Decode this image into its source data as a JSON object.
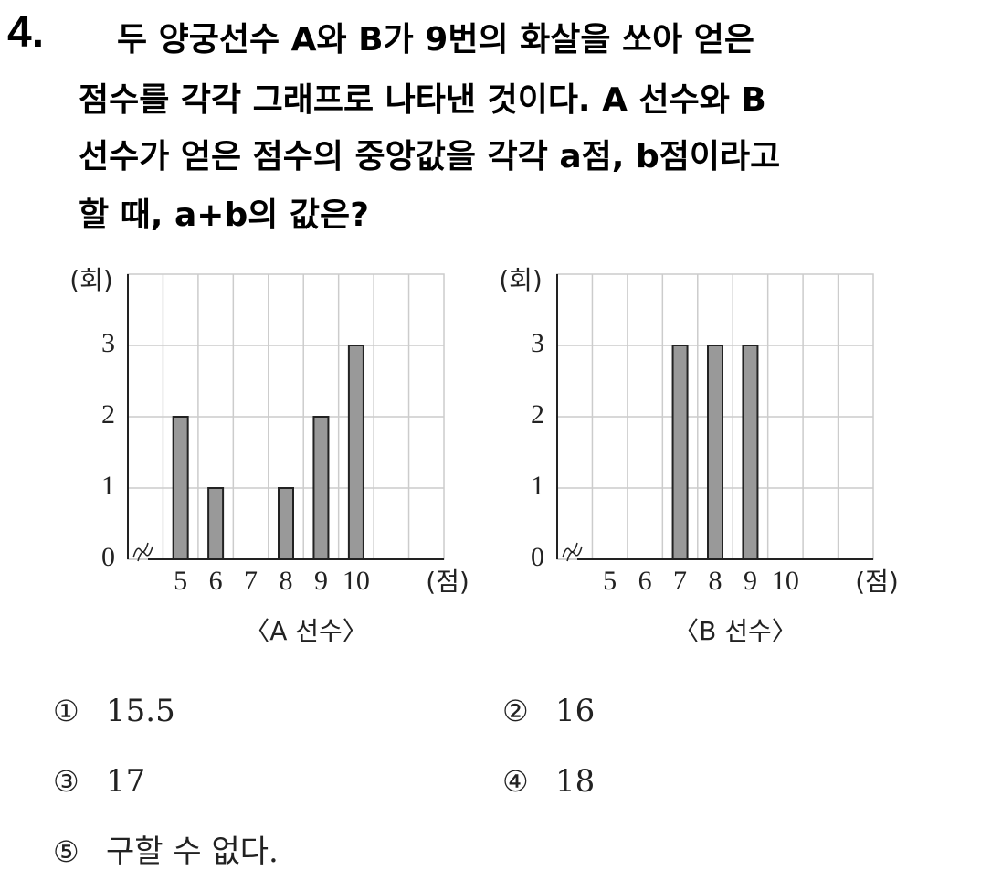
{
  "question_number": "4.",
  "question_lines": [
    "두 양궁선수 A와 B가 9번의 화살을 쏘아 얻은",
    "점수를 각각 그래프로 나타낸 것이다. A 선수와 B",
    "선수가 얻은 점수의 중앙값을 각각 a점, b점이라고",
    "할 때, a+b의 값은?"
  ],
  "chart_data": [
    {
      "type": "bar",
      "title": "〈A 선수〉",
      "x_label": "(점)",
      "y_label": "(회)",
      "categories": [
        null,
        5,
        6,
        7,
        8,
        9,
        10,
        null,
        null
      ],
      "values": [
        null,
        2,
        1,
        0,
        1,
        2,
        3,
        null,
        null
      ],
      "color": "#999999",
      "ylim": [
        0,
        4
      ],
      "yticks": [
        0,
        1,
        2,
        3
      ],
      "grid": true
    },
    {
      "type": "bar",
      "title": "〈B 선수〉",
      "x_label": "(점)",
      "y_label": "(회)",
      "categories": [
        null,
        5,
        6,
        7,
        8,
        9,
        10,
        null,
        null
      ],
      "values": [
        null,
        0,
        0,
        3,
        3,
        3,
        0,
        null,
        null
      ],
      "color": "#999999",
      "ylim": [
        0,
        4
      ],
      "yticks": [
        0,
        1,
        2,
        3
      ],
      "grid": true
    }
  ],
  "choices": [
    {
      "mark": "①",
      "text": "15.5"
    },
    {
      "mark": "②",
      "text": "16"
    },
    {
      "mark": "③",
      "text": "17"
    },
    {
      "mark": "④",
      "text": "18"
    },
    {
      "mark": "⑤",
      "text": "구할 수 없다."
    }
  ]
}
